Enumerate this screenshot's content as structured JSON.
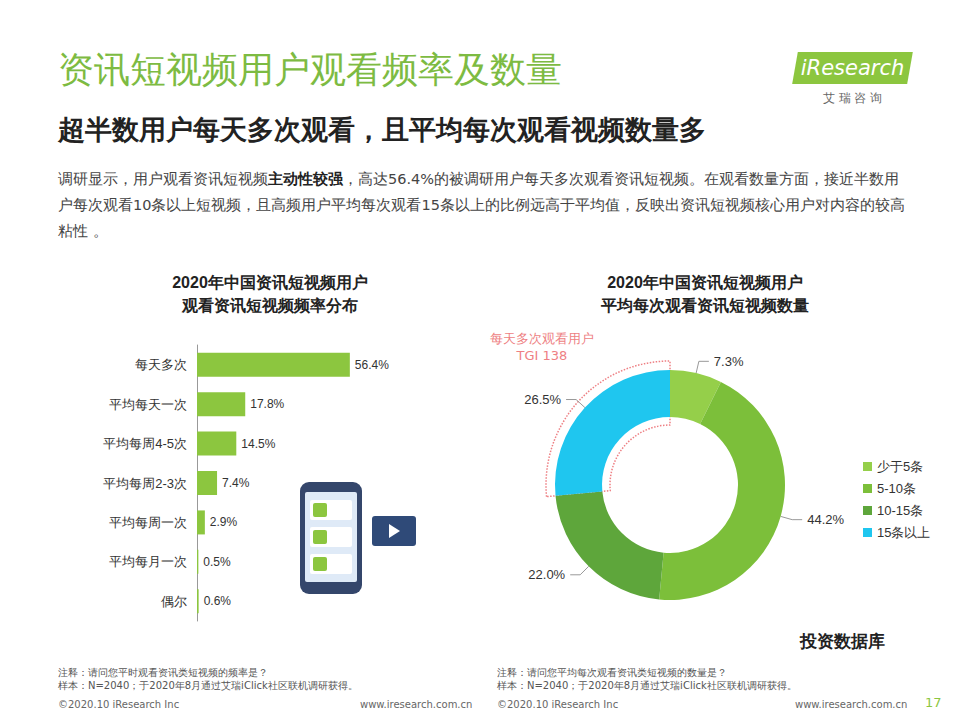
{
  "header": {
    "title": "资讯短视频用户观看频率及数量",
    "subtitle": "超半数用户每天多次观看，且平均每次观看视频数量多",
    "logo": "iResearch",
    "logo_sub": "艾 瑞 咨 询"
  },
  "summary": [
    {
      "text": "调研显示，用户观看资讯短视频"
    },
    {
      "text": "主动性较强",
      "bold": true
    },
    {
      "text": "，高达56.4%的被调研用户每天多次观看资讯短视频。在观看数量方面，接近半数用户每次观看10条以上短视频，且高频用户平均每次观看15条以上的比例远高于平均值，反映出资讯短视频核心用户对内容的较高粘性 。"
    }
  ],
  "chart_data": [
    {
      "type": "bar",
      "title": "2020年中国资讯短视频用户\n观看资讯短视频频率分布",
      "orientation": "horizontal",
      "categories": [
        "每天多次",
        "平均每天一次",
        "平均每周4-5次",
        "平均每周2-3次",
        "平均每周一次",
        "平均每月一次",
        "偶尔"
      ],
      "values": [
        56.4,
        17.8,
        14.5,
        7.4,
        2.9,
        0.5,
        0.6
      ],
      "value_labels": [
        "56.4%",
        "17.8%",
        "14.5%",
        "7.4%",
        "2.9%",
        "0.5%",
        "0.6%"
      ],
      "data_labels": true,
      "color": "#8cc63f",
      "xlim": [
        0,
        100
      ],
      "tick_labels": "y",
      "grid": false
    },
    {
      "type": "pie",
      "title": "2020年中国资讯短视频用户\n平均每次观看资讯短视频数量",
      "categories": [
        "少于5条",
        "5-10条",
        "10-15条",
        "15条以上"
      ],
      "values": [
        7.3,
        44.2,
        22.0,
        26.5
      ],
      "value_labels": [
        "7.3%",
        "44.2%",
        "22.0%",
        "26.5%"
      ],
      "colors": [
        "#95cf4a",
        "#7cbf3a",
        "#5ea63b",
        "#1fc6ef"
      ],
      "data_labels": true,
      "legend": "right",
      "annotations": [
        {
          "text": "每天多次观看用户\nTGI 138",
          "category": "15条以上"
        }
      ]
    }
  ],
  "notes": {
    "left": [
      "注释：请问您平时观看资讯类短视频的频率是？",
      "样本：N=2040；于2020年8月通过艾瑞iClick社区联机调研获得。"
    ],
    "right": [
      "注释：请问您平均每次观看资讯类短视频的数量是？",
      "样本：N=2040；于2020年8月通过艾瑞iClick社区联机调研获得。"
    ]
  },
  "footer": {
    "left": [
      "©2020.10 iResearch Inc",
      "www.iresearch.com.cn"
    ],
    "right": [
      "©2020.10 iResearch Inc",
      "www.iresearch.com.cn"
    ],
    "page": 17,
    "watermark": "投资数据库"
  }
}
